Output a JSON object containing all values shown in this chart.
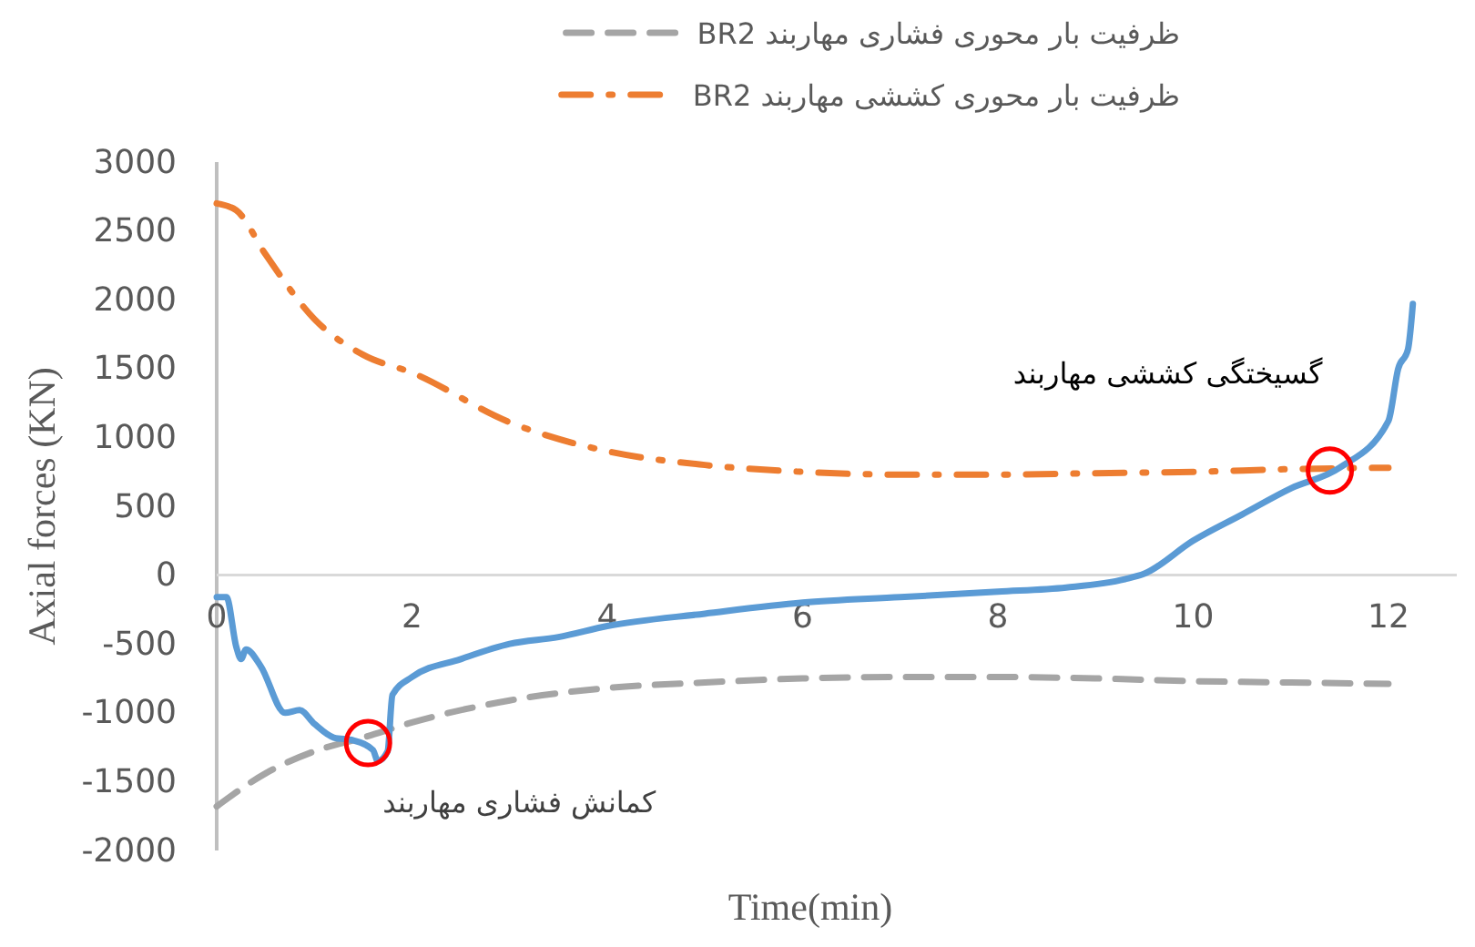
{
  "chart_data": {
    "type": "line",
    "xlabel": "Time(min)",
    "ylabel": "Axial forces (KN)",
    "xlim": [
      0,
      12.7
    ],
    "xticks": [
      0,
      2,
      4,
      6,
      8,
      10,
      12
    ],
    "ylim": [
      -2000,
      3000
    ],
    "yticks": [
      -2000,
      -1500,
      -1000,
      -500,
      0,
      500,
      1000,
      1500,
      2000,
      2500,
      3000
    ],
    "grid": false,
    "legend": "top",
    "series": [
      {
        "name": "ظرفیت بار محوری فشاری مهاربند BR2",
        "color": "#a5a5a5",
        "line_style": "dashed",
        "x": [
          0,
          0.5,
          1,
          1.5,
          2,
          3,
          4,
          5,
          6,
          7,
          8,
          9,
          10,
          11,
          12
        ],
        "values": [
          -1680,
          -1440,
          -1280,
          -1180,
          -1070,
          -910,
          -820,
          -780,
          -750,
          -740,
          -740,
          -750,
          -770,
          -780,
          -790
        ]
      },
      {
        "name": "ظرفیت بار محوری کششی مهاربند BR2",
        "color": "#ed7d31",
        "line_style": "dashdot",
        "x": [
          0,
          0.2,
          0.5,
          1,
          1.5,
          2,
          3,
          4,
          5,
          6,
          7,
          8,
          9,
          10,
          11,
          12
        ],
        "values": [
          2700,
          2650,
          2330,
          1860,
          1600,
          1470,
          1110,
          900,
          800,
          750,
          730,
          730,
          740,
          750,
          770,
          780
        ]
      },
      {
        "color": "#5b9bd5",
        "line_style": "solid",
        "x": [
          0,
          0.1,
          0.2,
          0.25,
          0.3,
          0.45,
          0.7,
          0.85,
          1.0,
          1.2,
          1.4,
          1.6,
          1.65,
          1.75,
          1.8,
          2,
          2.5,
          3,
          3.5,
          4,
          5,
          6,
          7,
          8,
          8.7,
          9.3,
          9.5,
          10,
          10.5,
          11,
          11.5,
          12,
          12.1,
          12.2,
          12.25
        ],
        "values": [
          -160,
          -160,
          -520,
          -610,
          -540,
          -660,
          -1000,
          -980,
          -1080,
          -1180,
          -1200,
          -1270,
          -1350,
          -1280,
          -870,
          -740,
          -610,
          -500,
          -450,
          -370,
          -280,
          -200,
          -160,
          -120,
          -90,
          -30,
          10,
          250,
          440,
          630,
          780,
          1120,
          1500,
          1640,
          1970
        ]
      }
    ],
    "annotations": [
      {
        "text": "کمانش فشاری مهاربند",
        "x": 1.55,
        "y": -1220
      },
      {
        "text": "گسیختگی کششی مهاربند",
        "x": 11.4,
        "y": 760
      }
    ]
  }
}
